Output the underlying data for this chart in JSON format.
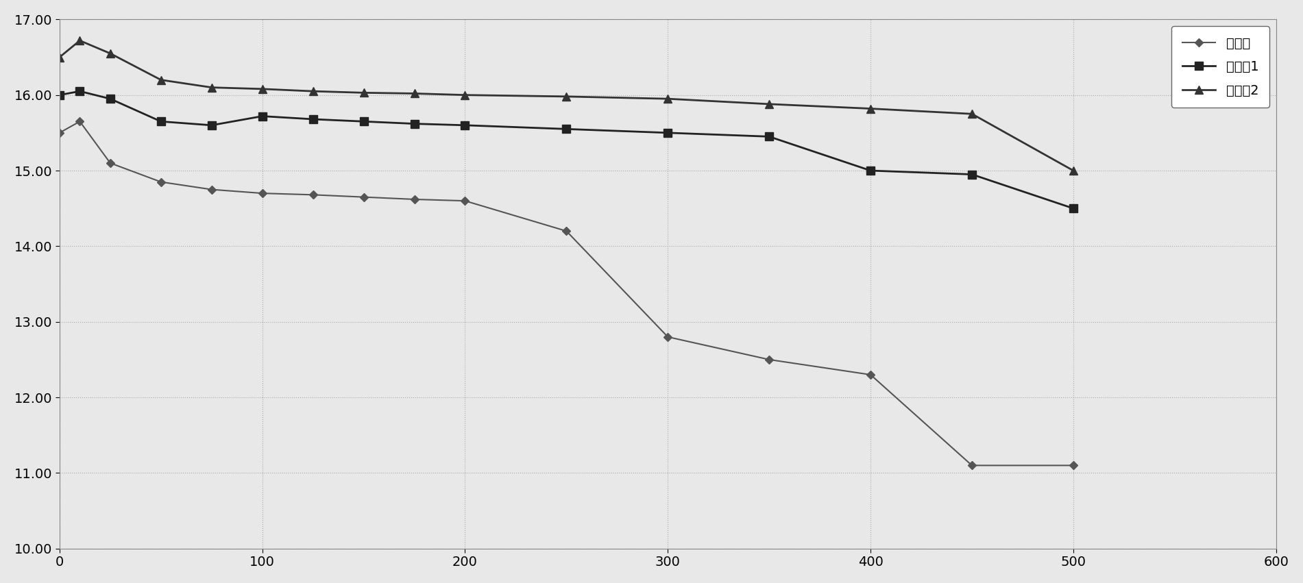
{
  "series": {
    "比較例": {
      "x": [
        0,
        10,
        25,
        50,
        75,
        100,
        125,
        150,
        175,
        200,
        250,
        300,
        350,
        400,
        450,
        500
      ],
      "y": [
        15.5,
        15.65,
        15.1,
        14.85,
        14.75,
        14.7,
        14.68,
        14.65,
        14.62,
        14.6,
        14.2,
        12.8,
        12.5,
        12.3,
        11.1,
        11.1
      ],
      "color": "#555555",
      "marker": "D",
      "linestyle": "-",
      "linewidth": 1.5,
      "markersize": 6
    },
    "实施例1": {
      "x": [
        0,
        10,
        25,
        50,
        75,
        100,
        125,
        150,
        175,
        200,
        250,
        300,
        350,
        400,
        450,
        500
      ],
      "y": [
        16.0,
        16.05,
        15.95,
        15.65,
        15.6,
        15.72,
        15.68,
        15.65,
        15.62,
        15.6,
        15.55,
        15.5,
        15.45,
        15.0,
        14.95,
        14.5
      ],
      "color": "#222222",
      "marker": "s",
      "linestyle": "-",
      "linewidth": 2.0,
      "markersize": 8
    },
    "实施例2": {
      "x": [
        0,
        10,
        25,
        50,
        75,
        100,
        125,
        150,
        175,
        200,
        250,
        300,
        350,
        400,
        450,
        500
      ],
      "y": [
        16.5,
        16.72,
        16.55,
        16.2,
        16.1,
        16.08,
        16.05,
        16.03,
        16.02,
        16.0,
        15.98,
        15.95,
        15.88,
        15.82,
        15.75,
        15.0
      ],
      "color": "#333333",
      "marker": "^",
      "linestyle": "-",
      "linewidth": 2.0,
      "markersize": 8
    }
  },
  "xlim": [
    0,
    600
  ],
  "ylim": [
    10.0,
    17.0
  ],
  "xticks": [
    0,
    100,
    200,
    300,
    400,
    500,
    600
  ],
  "yticks": [
    10.0,
    11.0,
    12.0,
    13.0,
    14.0,
    15.0,
    16.0,
    17.0
  ],
  "grid_color": "#aaaaaa",
  "grid_linestyle": ":",
  "grid_linewidth": 0.8,
  "background_color": "#e8e8e8",
  "plot_bg_color": "#e8e8e8",
  "legend_labels": [
    "比較例",
    "实施例1",
    "实施例2"
  ],
  "legend_loc": "upper right",
  "figsize": [
    19.01,
    8.51
  ],
  "dpi": 100,
  "tick_fontsize": 14,
  "legend_fontsize": 14
}
